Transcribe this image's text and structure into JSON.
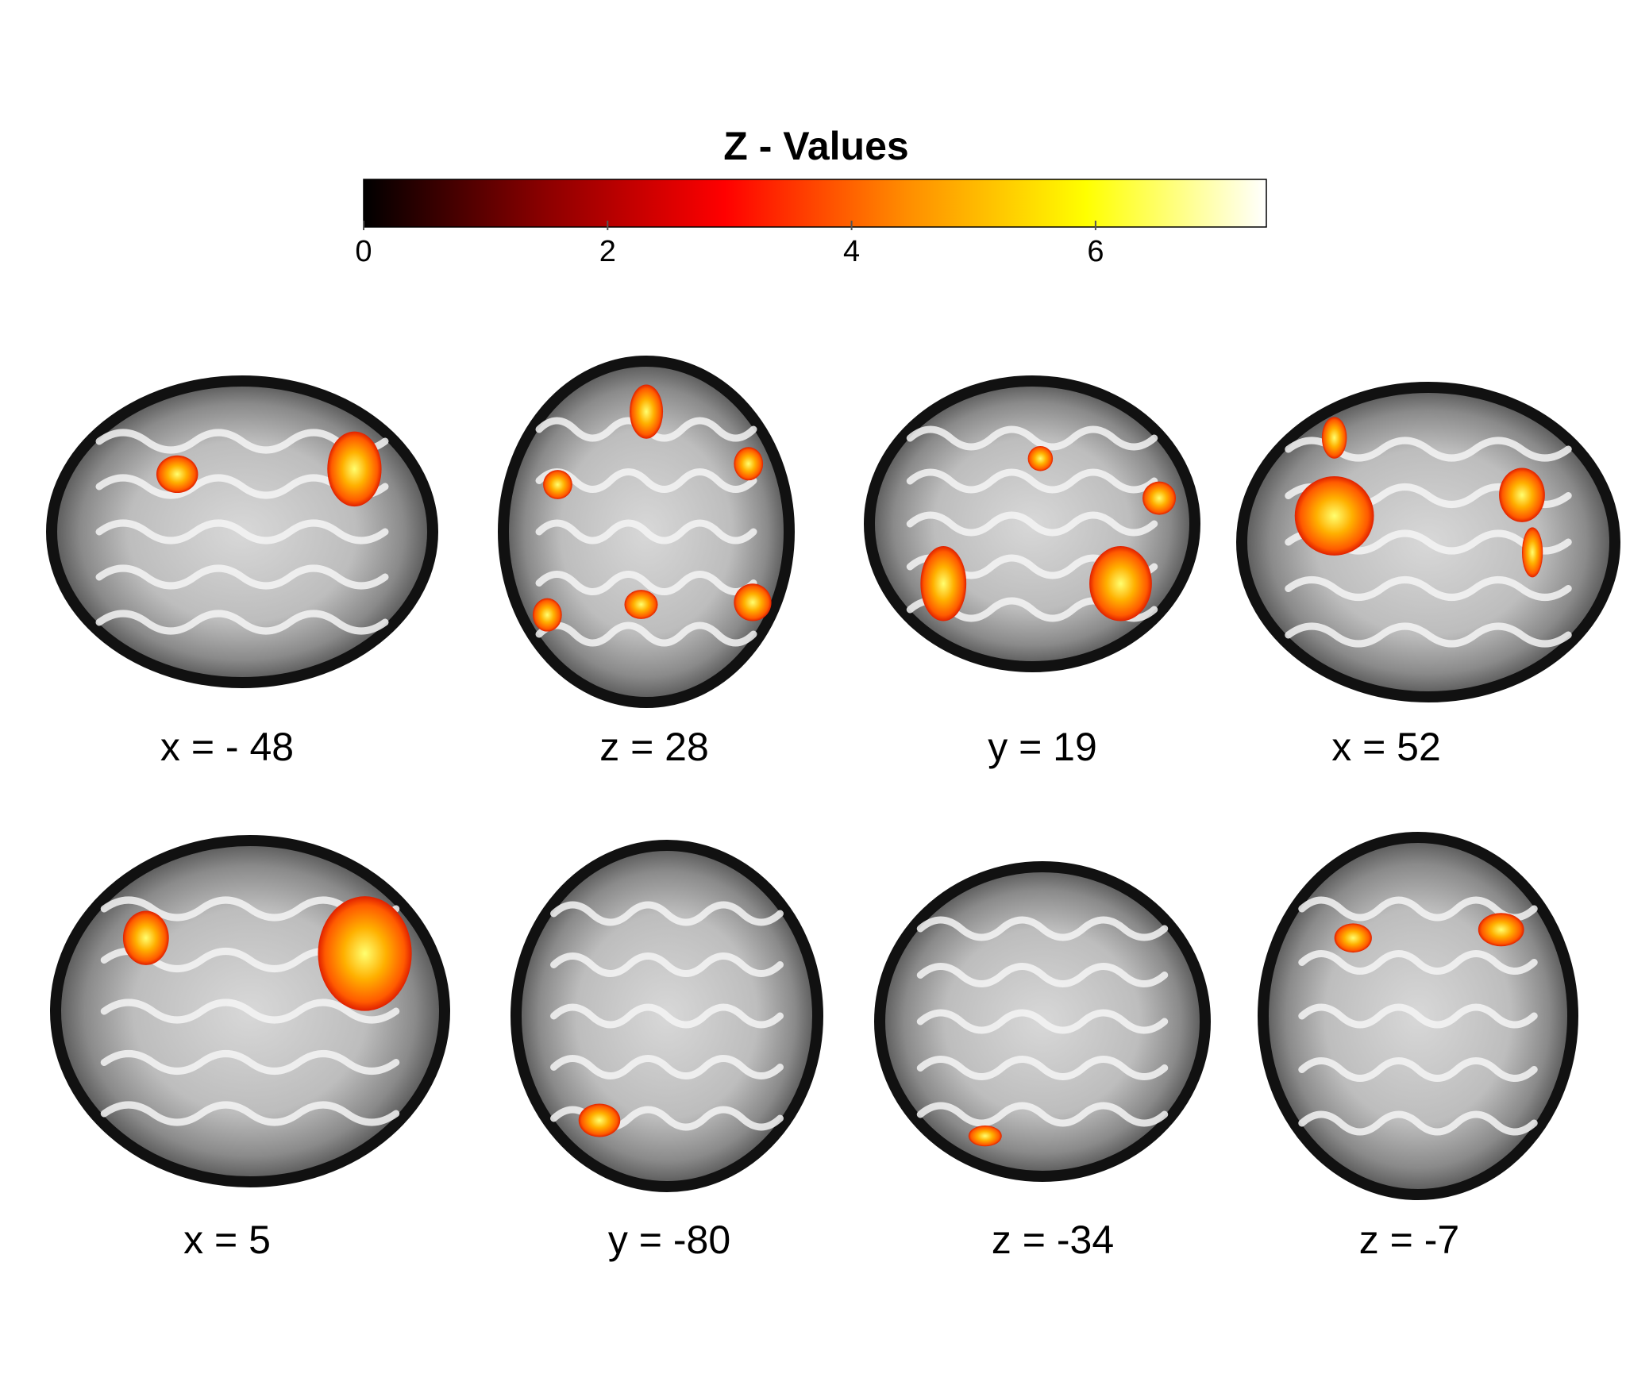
{
  "colorbar": {
    "title": "Z - Values",
    "range": [
      0,
      7.4
    ],
    "ticks": [
      0,
      2,
      4,
      6
    ],
    "colors": [
      "#000000",
      "#8b0000",
      "#ff0000",
      "#ff8c00",
      "#ffff00",
      "#ffffff"
    ]
  },
  "panels": [
    {
      "label": "x = - 48"
    },
    {
      "label": "z = 28"
    },
    {
      "label": "y = 19"
    },
    {
      "label": "x = 52"
    },
    {
      "label": "x = 5"
    },
    {
      "label": "y = -80"
    },
    {
      "label": "z = -34"
    },
    {
      "label": "z = -7"
    }
  ]
}
